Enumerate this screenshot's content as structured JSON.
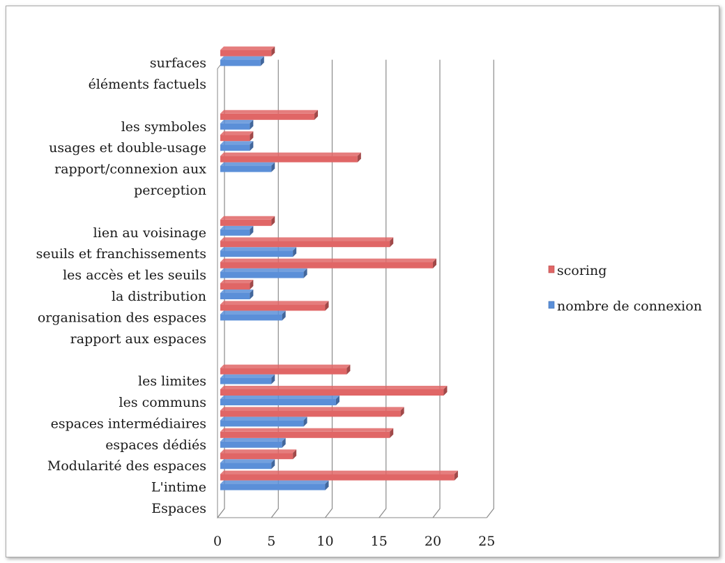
{
  "chart_data": {
    "type": "bar",
    "orientation": "horizontal",
    "three_d": true,
    "categories": [
      "Espaces",
      "L'intime",
      "Modularité des espaces",
      "espaces dédiés",
      "espaces intermédiaires",
      "les communs",
      "les limites",
      "",
      "rapport aux espaces",
      "organisation des espaces",
      "la distribution",
      "les accès et les seuils",
      "seuils et franchissements",
      "lien au voisinage",
      "",
      "perception",
      "rapport/connexion aux",
      "usages et double-usage",
      "les symboles",
      "",
      "éléments factuels",
      "surfaces"
    ],
    "series": [
      {
        "name": "scoring",
        "color": "#e06666",
        "values": [
          null,
          22,
          7,
          16,
          17,
          21,
          12,
          null,
          null,
          10,
          3,
          20,
          16,
          5,
          null,
          null,
          13,
          3,
          9,
          null,
          null,
          5
        ]
      },
      {
        "name": "nombre de connexion",
        "color": "#5b8fd8",
        "values": [
          null,
          10,
          5,
          6,
          8,
          11,
          5,
          null,
          null,
          6,
          3,
          8,
          7,
          3,
          null,
          null,
          5,
          3,
          3,
          null,
          null,
          4
        ]
      }
    ],
    "xlim": [
      0,
      25
    ],
    "xticks": [
      0,
      5,
      10,
      15,
      20,
      25
    ],
    "grid": true,
    "legend_position": "right"
  }
}
